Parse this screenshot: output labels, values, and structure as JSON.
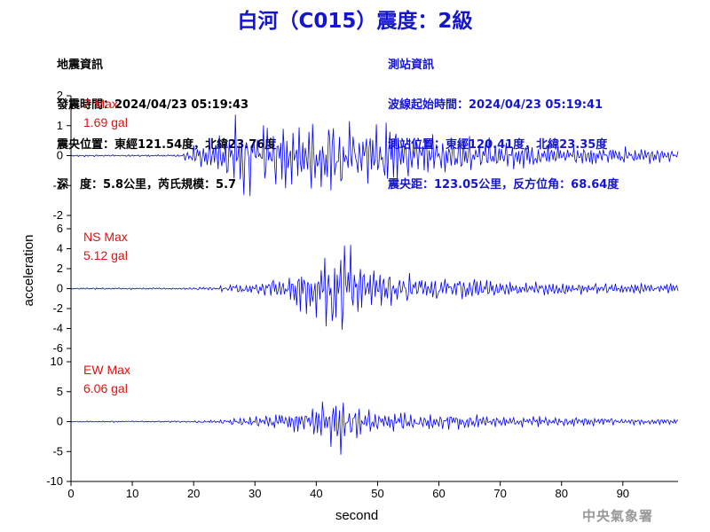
{
  "header": {
    "title": "白河（C015）震度：2級"
  },
  "quake_info": {
    "heading": "地震資訊",
    "time": "發震時間：2024/04/23 05:19:43",
    "epicenter": "震央位置：東經121.54度，北緯23.76度",
    "depth_magnitude": "深　度：5.8公里，芮氏規模：5.7"
  },
  "station_info": {
    "heading": "測站資訊",
    "wave_start": "波線起始時間：2024/04/23 05:19:41",
    "location": "測站位置：東經120.41度，北緯23.35度",
    "distance": "震央距：123.05公里，反方位角：68.64度"
  },
  "footer": {
    "agency": "中央氣象署"
  },
  "colors": {
    "trace": "#0000ff",
    "title": "#1515d0",
    "channel_label": "#e01010",
    "agency": "#999999"
  },
  "chart_data": {
    "type": "line",
    "xlabel": "second",
    "ylabel": "acceleration",
    "xlim": [
      0,
      99
    ],
    "xticks": [
      0,
      10,
      20,
      30,
      40,
      50,
      60,
      70,
      80,
      90
    ],
    "sample_rate_hz": 5,
    "panels": [
      {
        "channel": "Z",
        "label": "Z Max",
        "max_text": "1.69 gal",
        "ylim": [
          -2,
          2
        ],
        "yticks": [
          2,
          1,
          0,
          -1,
          -2
        ],
        "envelope": [
          [
            0,
            0.03
          ],
          [
            18,
            0.04
          ],
          [
            19,
            0.25
          ],
          [
            22,
            0.45
          ],
          [
            26,
            0.9
          ],
          [
            27,
            1.6
          ],
          [
            30,
            1.1
          ],
          [
            35,
            1.0
          ],
          [
            40,
            1.2
          ],
          [
            45,
            1.2
          ],
          [
            50,
            1.1
          ],
          [
            55,
            0.9
          ],
          [
            60,
            0.7
          ],
          [
            70,
            0.5
          ],
          [
            80,
            0.35
          ],
          [
            90,
            0.3
          ],
          [
            99,
            0.2
          ]
        ],
        "seed": 7
      },
      {
        "channel": "NS",
        "label": "NS Max",
        "max_text": "5.12 gal",
        "ylim": [
          -6,
          6
        ],
        "yticks": [
          6,
          4,
          2,
          0,
          -2,
          -4,
          -6
        ],
        "envelope": [
          [
            0,
            0.08
          ],
          [
            20,
            0.1
          ],
          [
            25,
            0.3
          ],
          [
            30,
            0.7
          ],
          [
            35,
            1.2
          ],
          [
            38,
            2.5
          ],
          [
            40,
            3.0
          ],
          [
            43,
            4.5
          ],
          [
            45,
            4.5
          ],
          [
            48,
            2.5
          ],
          [
            50,
            2.0
          ],
          [
            55,
            1.6
          ],
          [
            60,
            1.5
          ],
          [
            70,
            0.9
          ],
          [
            80,
            0.7
          ],
          [
            90,
            0.6
          ],
          [
            99,
            0.5
          ]
        ],
        "seed": 13
      },
      {
        "channel": "EW",
        "label": "EW Max",
        "max_text": "6.06 gal",
        "ylim": [
          -10,
          10
        ],
        "yticks": [
          10,
          5,
          0,
          -5,
          -10
        ],
        "envelope": [
          [
            0,
            0.1
          ],
          [
            20,
            0.15
          ],
          [
            25,
            0.4
          ],
          [
            30,
            0.9
          ],
          [
            38,
            2.0
          ],
          [
            42,
            3.5
          ],
          [
            44,
            5.5
          ],
          [
            46,
            3.0
          ],
          [
            50,
            2.0
          ],
          [
            55,
            1.6
          ],
          [
            60,
            1.4
          ],
          [
            70,
            1.0
          ],
          [
            80,
            0.8
          ],
          [
            90,
            0.6
          ],
          [
            99,
            0.5
          ]
        ],
        "seed": 29
      }
    ]
  }
}
